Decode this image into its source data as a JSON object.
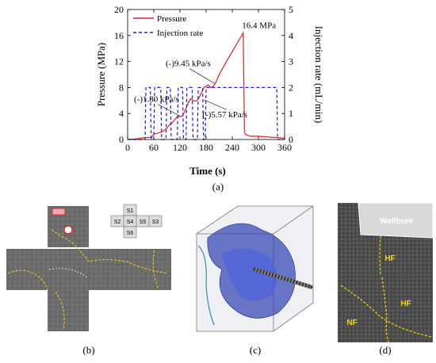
{
  "panels": {
    "a": "(a)",
    "b": "(b)",
    "c": "(c)",
    "d": "(d)"
  },
  "chart_data": {
    "type": "line",
    "xlabel": "Time (s)",
    "ylabel_left": "Pressure (MPa)",
    "ylabel_right": "Injection rate (mL/min)",
    "xlim": [
      0,
      360
    ],
    "ylim_left": [
      0,
      20
    ],
    "ylim_right": [
      0,
      5
    ],
    "x_ticks": [
      0,
      60,
      120,
      180,
      240,
      300,
      360
    ],
    "y_ticks_left": [
      0,
      4,
      8,
      12,
      16,
      20
    ],
    "y_ticks_right": [
      0,
      1,
      2,
      3,
      4,
      5
    ],
    "legend": [
      "Pressure",
      "Injection rate"
    ],
    "legend_position": "top-left",
    "series": [
      {
        "name": "Pressure",
        "axis": "left",
        "color": "#ee1c1c",
        "style": "solid",
        "x": [
          0,
          20,
          40,
          45,
          55,
          60,
          70,
          80,
          85,
          90,
          95,
          100,
          105,
          110,
          115,
          120,
          125,
          130,
          135,
          140,
          145,
          150,
          155,
          160,
          165,
          170,
          175,
          180,
          185,
          190,
          195,
          200,
          205,
          210,
          220,
          230,
          240,
          250,
          260,
          265,
          268,
          270,
          280,
          300,
          320,
          340,
          360
        ],
        "values": [
          0,
          0.1,
          0.3,
          0.3,
          0.35,
          0.8,
          1.0,
          1.2,
          1.5,
          1.7,
          2.2,
          2.5,
          2.8,
          3.2,
          3.6,
          3.5,
          3.6,
          4.2,
          5.0,
          5.8,
          6.3,
          6.0,
          5.9,
          6.0,
          6.6,
          7.3,
          8.0,
          8.2,
          8.4,
          8.0,
          8.1,
          8.5,
          9.2,
          10.0,
          11.2,
          12.4,
          13.5,
          14.7,
          15.8,
          16.4,
          1.2,
          0.8,
          0.5,
          0.5,
          0.4,
          0.3,
          0.2
        ]
      },
      {
        "name": "Injection rate",
        "axis": "right",
        "color": "#1a1aee",
        "style": "dashed",
        "x": [
          0,
          40,
          42,
          52,
          54,
          60,
          62,
          76,
          78,
          88,
          90,
          98,
          100,
          114,
          116,
          126,
          128,
          134,
          136,
          148,
          150,
          160,
          162,
          172,
          174,
          178,
          180,
          342,
          344,
          360
        ],
        "values": [
          0,
          0,
          2,
          2,
          0,
          0,
          2,
          2,
          0,
          0,
          2,
          2,
          0,
          0,
          2,
          2,
          0,
          0,
          2,
          2,
          0,
          0,
          2,
          2,
          0,
          0,
          2,
          2,
          0,
          0
        ]
      }
    ],
    "annotations": [
      {
        "text": "16.4 MPa",
        "x": 266,
        "y": 16.4
      },
      {
        "text": "(-)9.45 kPa/s",
        "x": 200,
        "y": 8.6
      },
      {
        "text": "(-)1.80 kPa/s",
        "x": 120,
        "y": 3.6
      },
      {
        "text": "(-)5.57 kPa/s",
        "x": 175,
        "y": 6.1
      }
    ]
  },
  "images": {
    "b_cells": [
      "S1",
      "S2",
      "S4",
      "S5",
      "S3",
      "S6"
    ],
    "d_labels": [
      "Wellbore",
      "HF",
      "HF",
      "NF"
    ]
  }
}
